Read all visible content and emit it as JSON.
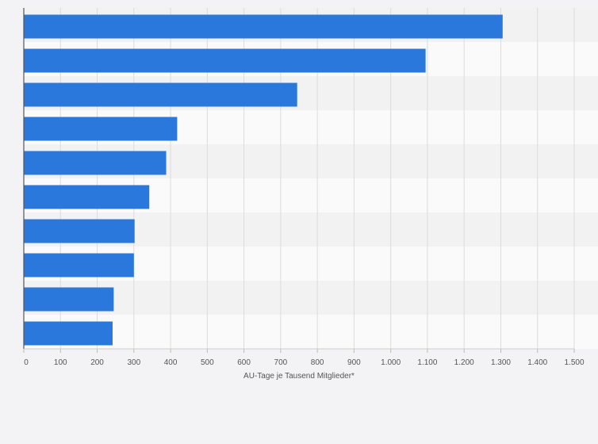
{
  "chart_data": {
    "type": "bar",
    "orientation": "horizontal",
    "categories": [
      "",
      "",
      "",
      "",
      "",
      "",
      "",
      "",
      "",
      ""
    ],
    "values": [
      1305,
      1095,
      745,
      418,
      388,
      342,
      302,
      300,
      245,
      242
    ],
    "xlabel": "AU-Tage je Tausend Mitglieder*",
    "xlim": [
      0,
      1500
    ],
    "x_ticks": [
      "0",
      "100",
      "200",
      "300",
      "400",
      "500",
      "600",
      "700",
      "800",
      "900",
      "1.000",
      "1.100",
      "1.200",
      "1.300",
      "1.400",
      "1.500"
    ],
    "grid": true,
    "bar_color": "#2a78dc",
    "band_colors": [
      "#f2f2f2",
      "#fafafa"
    ],
    "gridline_color": "#dcdcdc",
    "axis_color": "#555555"
  }
}
